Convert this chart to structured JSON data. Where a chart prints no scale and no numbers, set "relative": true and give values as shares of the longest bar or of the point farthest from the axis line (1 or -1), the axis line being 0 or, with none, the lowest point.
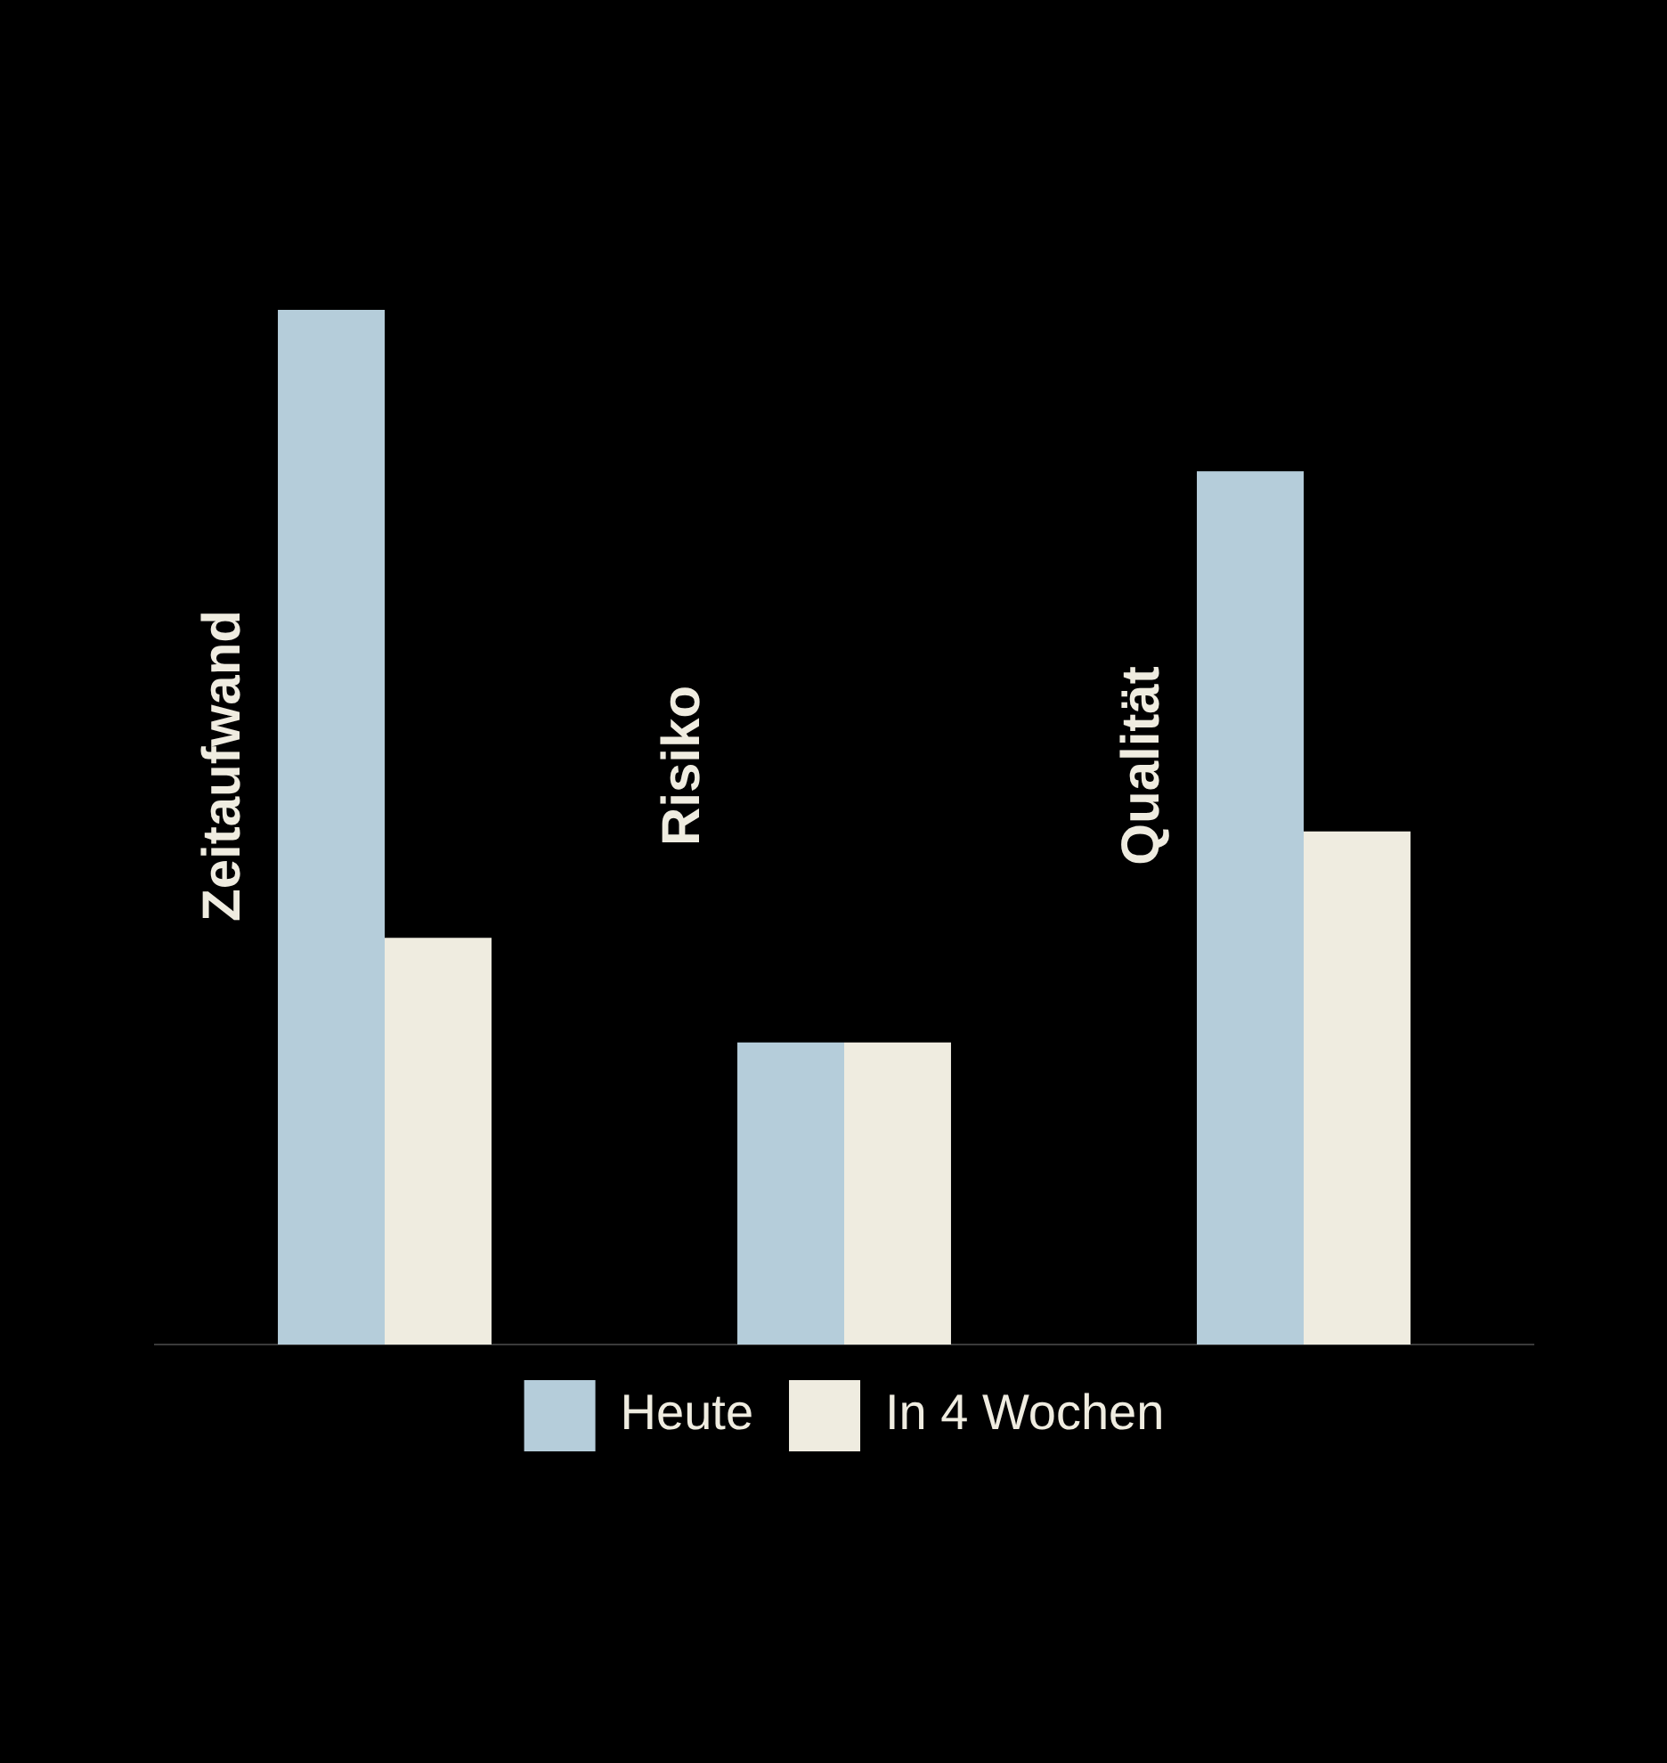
{
  "chart_data": {
    "type": "bar",
    "relative": true,
    "categories": [
      "Zeitaufwand",
      "Risiko",
      "Qualität"
    ],
    "series": [
      {
        "name": "Heute",
        "color": "#b5cdda",
        "values": [
          1,
          0.292,
          0.844
        ]
      },
      {
        "name": "In 4 Wochen",
        "color": "#efece0",
        "values": [
          0.393,
          0.292,
          0.496
        ]
      }
    ],
    "legend": "bottom"
  }
}
